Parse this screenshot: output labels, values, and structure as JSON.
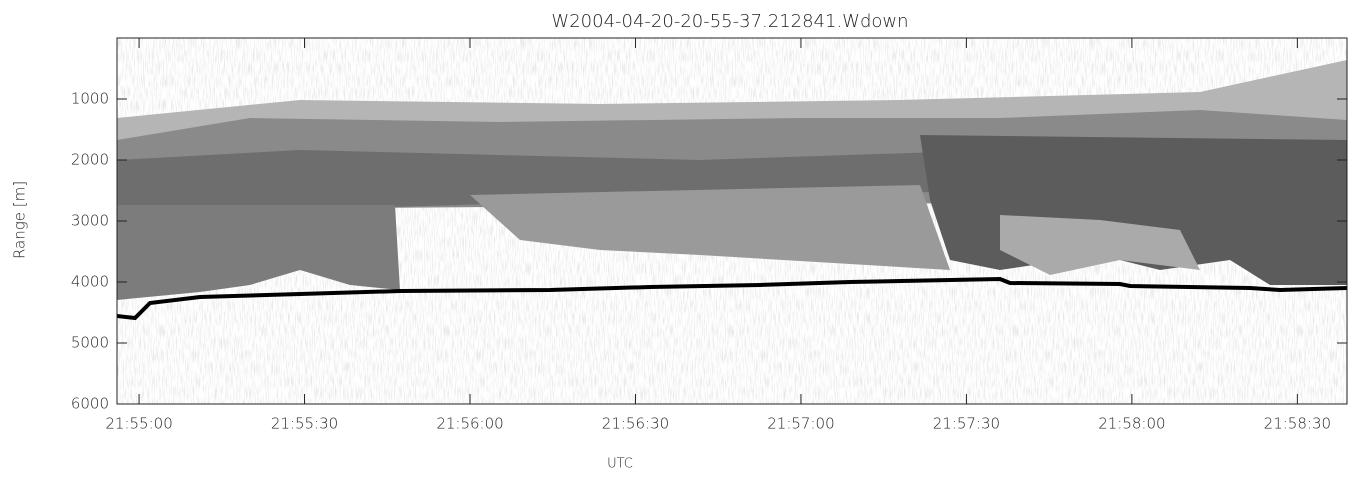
{
  "chart_data": {
    "type": "image",
    "title": "W2004-04-20-20-55-37.212841.Wdown",
    "y_label": "Range [m]",
    "x_label": "UTC",
    "ylim": [
      0,
      6000
    ],
    "y_inverted": true,
    "yticks": [
      1000,
      2000,
      3000,
      4000,
      5000,
      6000
    ],
    "xlim": [
      78896,
      79119
    ],
    "xticks": [
      {
        "value": 78900,
        "label": "21:55:00"
      },
      {
        "value": 78930,
        "label": "21:55:30"
      },
      {
        "value": 78960,
        "label": "21:56:00"
      },
      {
        "value": 78990,
        "label": "21:56:30"
      },
      {
        "value": 79020,
        "label": "21:57:00"
      },
      {
        "value": 79050,
        "label": "21:57:30"
      },
      {
        "value": 79080,
        "label": "21:58:00"
      },
      {
        "value": 79110,
        "label": "21:58:30"
      }
    ]
  }
}
